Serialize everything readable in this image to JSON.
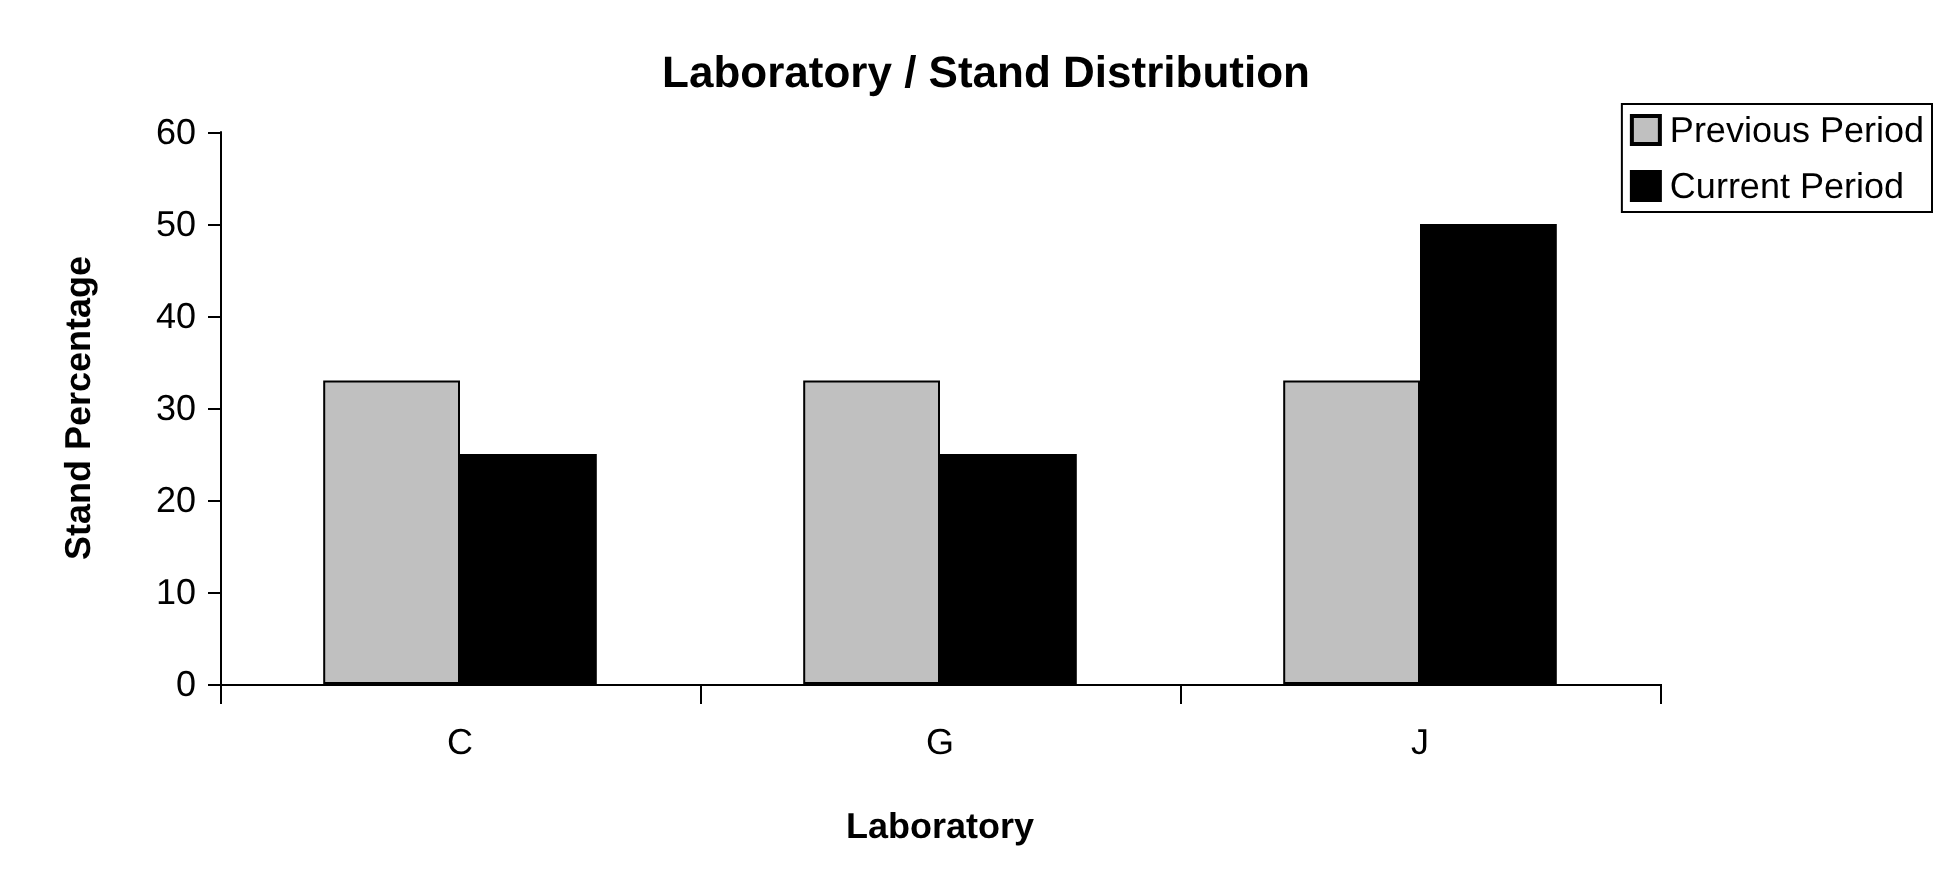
{
  "chart_data": {
    "type": "bar",
    "title": "Laboratory / Stand Distribution",
    "xlabel": "Laboratory",
    "ylabel": "Stand Percentage",
    "categories": [
      "C",
      "G",
      "J"
    ],
    "series": [
      {
        "name": "Previous Period",
        "color": "#c0c0c0",
        "values": [
          33,
          33,
          33
        ]
      },
      {
        "name": "Current Period",
        "color": "#000000",
        "values": [
          25,
          25,
          50
        ]
      }
    ],
    "ylim": [
      0,
      60
    ],
    "yticks": [
      0,
      10,
      20,
      30,
      40,
      50,
      60
    ],
    "grid": false,
    "legend": "top right"
  }
}
